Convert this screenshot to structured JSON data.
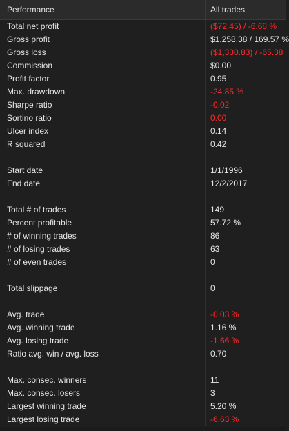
{
  "header": {
    "col1": "Performance",
    "col2": "All trades"
  },
  "rows": [
    {
      "label": "Total net profit",
      "value": "($72.45) / -6.68 %",
      "neg": true
    },
    {
      "label": "Gross profit",
      "value": "$1,258.38 / 169.57 %",
      "neg": false
    },
    {
      "label": "Gross loss",
      "value": "($1,330.83) / -65.38",
      "neg": true
    },
    {
      "label": "Commission",
      "value": "$0.00",
      "neg": false
    },
    {
      "label": "Profit factor",
      "value": "0.95",
      "neg": false
    },
    {
      "label": "Max. drawdown",
      "value": "-24.85 %",
      "neg": true
    },
    {
      "label": "Sharpe ratio",
      "value": "-0.02",
      "neg": true
    },
    {
      "label": "Sortino ratio",
      "value": "0.00",
      "neg": true
    },
    {
      "label": "Ulcer index",
      "value": "0.14",
      "neg": false
    },
    {
      "label": "R squared",
      "value": "0.42",
      "neg": false
    },
    {
      "label": "",
      "value": "",
      "neg": false
    },
    {
      "label": "Start date",
      "value": "1/1/1996",
      "neg": false
    },
    {
      "label": "End date",
      "value": "12/2/2017",
      "neg": false
    },
    {
      "label": "",
      "value": "",
      "neg": false
    },
    {
      "label": "Total # of trades",
      "value": "149",
      "neg": false
    },
    {
      "label": "Percent profitable",
      "value": "57.72 %",
      "neg": false
    },
    {
      "label": "# of winning trades",
      "value": "86",
      "neg": false
    },
    {
      "label": "# of losing trades",
      "value": "63",
      "neg": false
    },
    {
      "label": "# of even trades",
      "value": "0",
      "neg": false
    },
    {
      "label": "",
      "value": "",
      "neg": false
    },
    {
      "label": "Total slippage",
      "value": "0",
      "neg": false
    },
    {
      "label": "",
      "value": "",
      "neg": false
    },
    {
      "label": "Avg. trade",
      "value": "-0.03 %",
      "neg": true
    },
    {
      "label": "Avg. winning trade",
      "value": "1.16 %",
      "neg": false
    },
    {
      "label": "Avg. losing trade",
      "value": "-1.66 %",
      "neg": true
    },
    {
      "label": "Ratio avg. win / avg. loss",
      "value": "0.70",
      "neg": false
    },
    {
      "label": "",
      "value": "",
      "neg": false
    },
    {
      "label": "Max. consec. winners",
      "value": "11",
      "neg": false
    },
    {
      "label": "Max. consec. losers",
      "value": "3",
      "neg": false
    },
    {
      "label": "Largest winning trade",
      "value": "5.20 %",
      "neg": false
    },
    {
      "label": "Largest losing trade",
      "value": "-6.63 %",
      "neg": true
    }
  ],
  "colors": {
    "negative": "#ff2a2a",
    "text": "#e6e6e6",
    "background": "#1f1f1f",
    "header": "#2b2b2b"
  }
}
